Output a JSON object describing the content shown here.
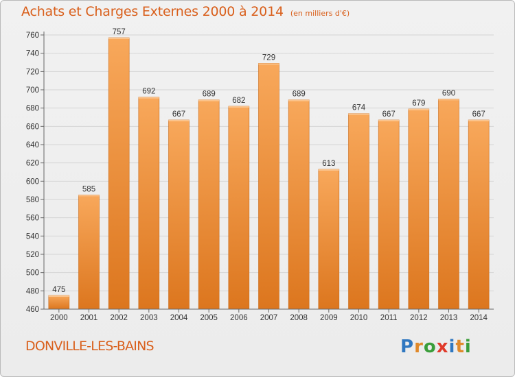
{
  "header": {
    "title": "Achats et Charges Externes 2000 à 2014",
    "subtitle": "(en milliers d'€)"
  },
  "footer": {
    "commune": "DONVILLE-LES-BAINS",
    "logo_text": "Proxiti"
  },
  "logo_letters": [
    {
      "ch": "P",
      "color": "#2f77c0"
    },
    {
      "ch": "r",
      "color": "#e0892a"
    },
    {
      "ch": "o",
      "color": "#3a9d3a"
    },
    {
      "ch": "x",
      "color": "#e03a2a"
    },
    {
      "ch": "i",
      "color": "#2f77c0"
    },
    {
      "ch": "t",
      "color": "#e0892a"
    },
    {
      "ch": "i",
      "color": "#3a9d3a"
    }
  ],
  "colors": {
    "accent": "#d95f1b",
    "bar_light": "#f8a85b",
    "bar_dark": "#dc761e",
    "grid": "#d4d4d4"
  },
  "chart_data": {
    "type": "bar",
    "title": "Achats et Charges Externes 2000 à 2014",
    "subtitle": "(en milliers d'€)",
    "categories": [
      "2000",
      "2001",
      "2002",
      "2003",
      "2004",
      "2005",
      "2006",
      "2007",
      "2008",
      "2009",
      "2010",
      "2011",
      "2012",
      "2013",
      "2014"
    ],
    "values": [
      475,
      585,
      757,
      692,
      667,
      689,
      682,
      729,
      689,
      613,
      674,
      667,
      679,
      690,
      667
    ],
    "ylim": [
      460,
      760
    ],
    "yticks": [
      460,
      480,
      500,
      520,
      540,
      560,
      580,
      600,
      620,
      640,
      660,
      680,
      700,
      720,
      740,
      760
    ],
    "xlabel": "",
    "ylabel": "",
    "grid": true,
    "data_labels": true
  }
}
